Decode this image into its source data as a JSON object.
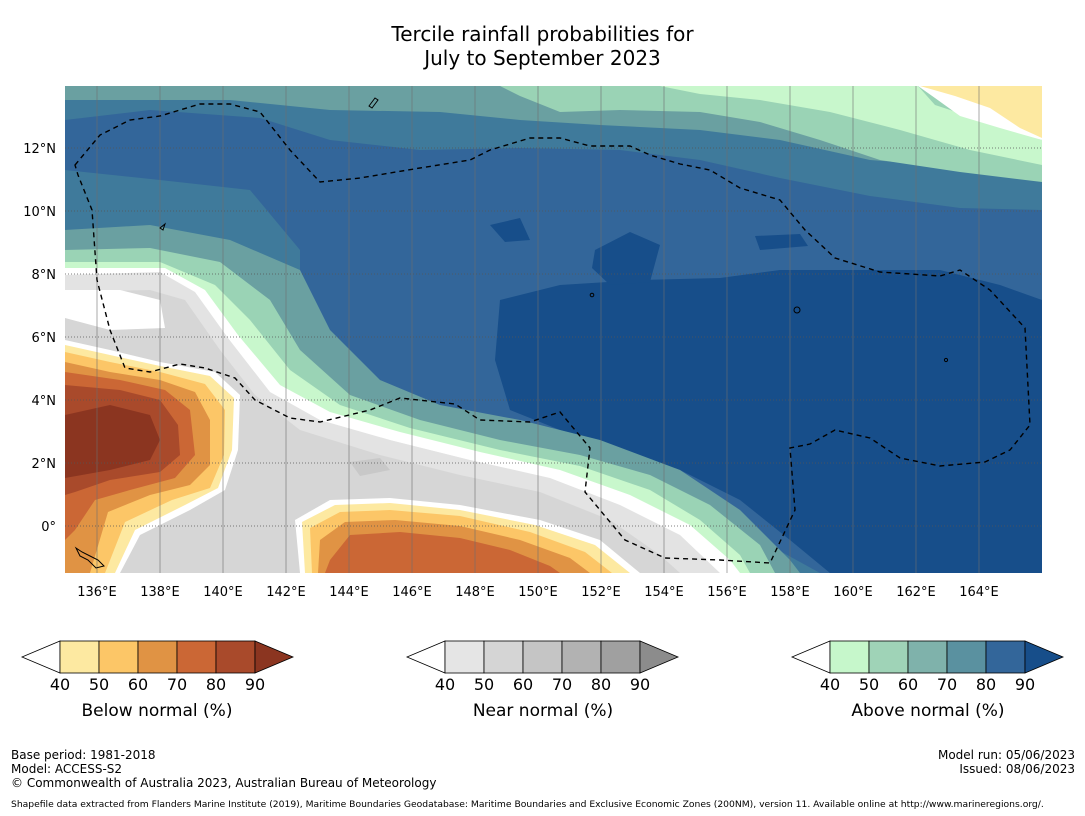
{
  "title": {
    "line1": "Tercile rainfall probabilities for",
    "line2": "July to September 2023"
  },
  "map": {
    "x_ticks": [
      "136°E",
      "138°E",
      "140°E",
      "142°E",
      "144°E",
      "146°E",
      "148°E",
      "150°E",
      "152°E",
      "154°E",
      "156°E",
      "158°E",
      "160°E",
      "162°E",
      "164°E"
    ],
    "y_ticks": [
      "12°N",
      "10°N",
      "8°N",
      "6°N",
      "4°N",
      "2°N",
      "0°"
    ]
  },
  "colorbars": {
    "below": {
      "label": "Below normal (%)",
      "ticks": [
        "40",
        "50",
        "60",
        "70",
        "80",
        "90"
      ],
      "colors": [
        "#ffffff",
        "#fde9a1",
        "#fcc667",
        "#e09344",
        "#cb6735",
        "#a94a2b",
        "#8b3520"
      ]
    },
    "near": {
      "label": "Near normal (%)",
      "ticks": [
        "40",
        "50",
        "60",
        "70",
        "80",
        "90"
      ],
      "colors": [
        "#ffffff",
        "#e5e5e5",
        "#d5d5d5",
        "#c5c5c5",
        "#b2b2b2",
        "#a0a0a0",
        "#8c8c8c"
      ]
    },
    "above": {
      "label": "Above normal (%)",
      "ticks": [
        "40",
        "50",
        "60",
        "70",
        "80",
        "90"
      ],
      "colors": [
        "#ffffff",
        "#c6f7cb",
        "#9fd3b7",
        "#7fb2ab",
        "#5a91a0",
        "#33669a",
        "#174e8a"
      ]
    }
  },
  "footer": {
    "base_period": "Base period: 1981-2018",
    "model": "Model: ACCESS-S2",
    "copyright": "© Commonwealth of Australia 2023, Australian Bureau of Meteorology",
    "model_run": "Model run: 05/06/2023",
    "issued": "Issued: 08/06/2023",
    "shapefile": "Shapefile data extracted from Flanders Marine Institute (2019), Maritime Boundaries Geodatabase: Maritime Boundaries and Exclusive Economic Zones (200NM), version 11. Available online at http://www.marineregions.org/."
  }
}
